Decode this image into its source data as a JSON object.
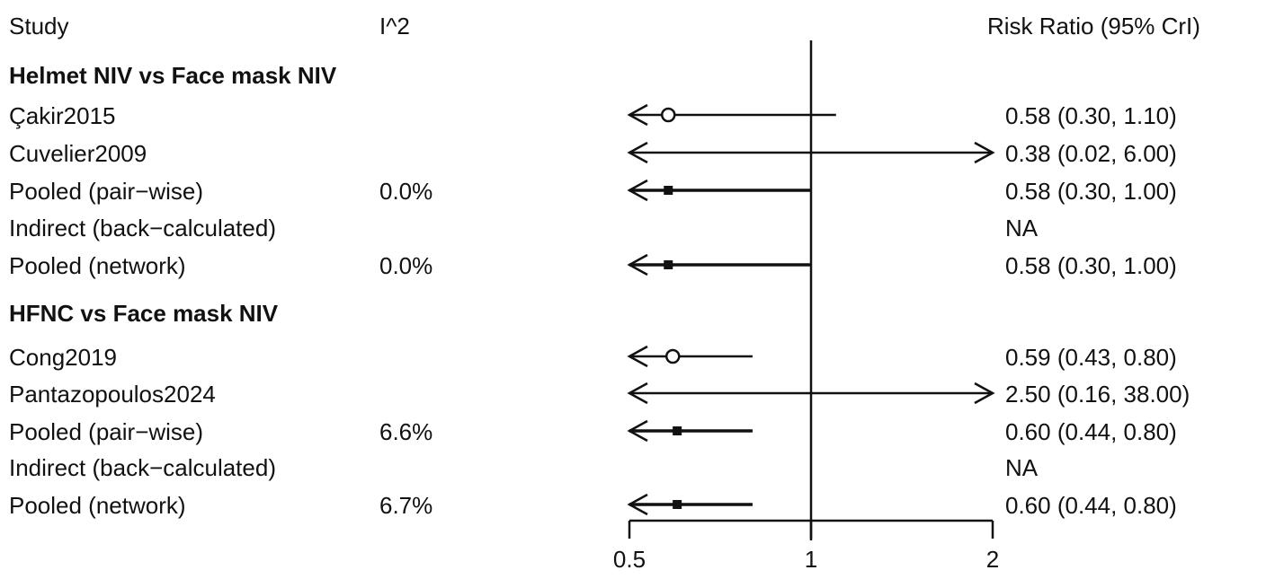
{
  "chart_data": {
    "type": "forest",
    "headers": {
      "study": "Study",
      "i2": "I^2",
      "effect": "Risk Ratio (95% CrI)"
    },
    "x_scale": "log",
    "xlim": [
      0.5,
      2
    ],
    "reference_line": 1,
    "x_ticks": [
      "0.5",
      "1",
      "2"
    ],
    "groups": [
      {
        "title": "Helmet NIV vs Face mask NIV",
        "rows": [
          {
            "study": "Çakir2015",
            "i2": "",
            "est": 0.58,
            "lo": 0.3,
            "hi": 1.1,
            "label": "0.58 (0.30, 1.10)",
            "marker": "open-circle"
          },
          {
            "study": "Cuvelier2009",
            "i2": "",
            "est": 0.38,
            "lo": 0.02,
            "hi": 6.0,
            "label": "0.38 (0.02, 6.00)",
            "marker": "open-circle"
          },
          {
            "study": "Pooled (pair−wise)",
            "i2": "0.0%",
            "est": 0.58,
            "lo": 0.3,
            "hi": 1.0,
            "label": "0.58 (0.30, 1.00)",
            "marker": "filled-square"
          },
          {
            "study": "Indirect (back−calculated)",
            "i2": "",
            "est": null,
            "lo": null,
            "hi": null,
            "label": "NA",
            "marker": "none"
          },
          {
            "study": "Pooled (network)",
            "i2": "0.0%",
            "est": 0.58,
            "lo": 0.3,
            "hi": 1.0,
            "label": "0.58 (0.30, 1.00)",
            "marker": "filled-square"
          }
        ]
      },
      {
        "title": "HFNC vs Face mask NIV",
        "rows": [
          {
            "study": "Cong2019",
            "i2": "",
            "est": 0.59,
            "lo": 0.43,
            "hi": 0.8,
            "label": "0.59 (0.43, 0.80)",
            "marker": "open-circle"
          },
          {
            "study": "Pantazopoulos2024",
            "i2": "",
            "est": 2.5,
            "lo": 0.16,
            "hi": 38.0,
            "label": "2.50 (0.16, 38.00)",
            "marker": "open-circle"
          },
          {
            "study": "Pooled (pair−wise)",
            "i2": "6.6%",
            "est": 0.6,
            "lo": 0.44,
            "hi": 0.8,
            "label": "0.60 (0.44, 0.80)",
            "marker": "filled-square"
          },
          {
            "study": "Indirect (back−calculated)",
            "i2": "",
            "est": null,
            "lo": null,
            "hi": null,
            "label": "NA",
            "marker": "none"
          },
          {
            "study": "Pooled (network)",
            "i2": "6.7%",
            "est": 0.6,
            "lo": 0.44,
            "hi": 0.8,
            "label": "0.60 (0.44, 0.80)",
            "marker": "filled-square"
          }
        ]
      }
    ]
  }
}
